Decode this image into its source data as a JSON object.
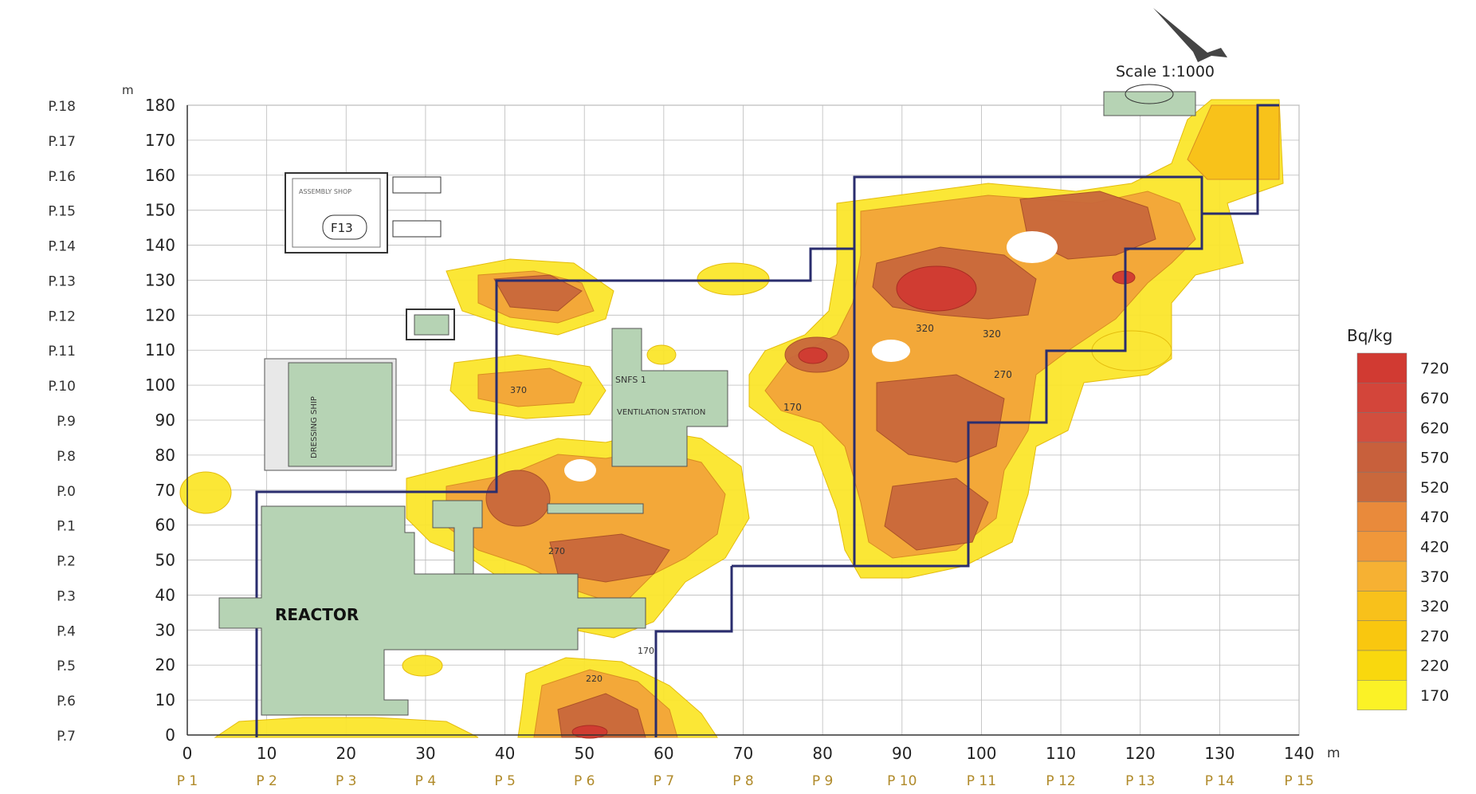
{
  "scale_label": "Scale 1:1000",
  "unit_x": "m",
  "unit_y": "m",
  "legend": {
    "title": "Bq/kg",
    "levels": [
      720,
      670,
      620,
      570,
      520,
      470,
      420,
      370,
      320,
      270,
      220,
      170
    ],
    "colors": [
      "#d13a32",
      "#d3453a",
      "#d24e3e",
      "#c8603c",
      "#c9683c",
      "#e98a3b",
      "#f0973a",
      "#f6b133",
      "#f8c11b",
      "#f9c70f",
      "#f9d80e",
      "#fbf226"
    ]
  },
  "x_ticks": [
    0,
    10,
    20,
    30,
    40,
    50,
    60,
    70,
    80,
    90,
    100,
    110,
    120,
    130,
    140
  ],
  "y_ticks": [
    0,
    10,
    20,
    30,
    40,
    50,
    60,
    70,
    80,
    90,
    100,
    110,
    120,
    130,
    140,
    150,
    160,
    170,
    180
  ],
  "x_profiles": [
    "P 1",
    "P 2",
    "P 3",
    "P 4",
    "P 5",
    "P 6",
    "P 7",
    "P 8",
    "P 9",
    "P 10",
    "P 11",
    "P 12",
    "P 13",
    "P 14",
    "P 15"
  ],
  "y_profiles": [
    "P.18",
    "P.17",
    "P.16",
    "P.15",
    "P.14",
    "P.13",
    "P.12",
    "P.11",
    "P.10",
    "P.9",
    "P.8",
    "P.0",
    "P.1",
    "P.2",
    "P.3",
    "P.4",
    "P.5",
    "P.6",
    "P.7"
  ],
  "buildings": {
    "reactor": "REACTOR",
    "ventilation": "VENTILATION STATION",
    "snfs": "SNFS 1",
    "dressing": "DRESSING SHIP",
    "assembly": "ASSEMBLY SHOP",
    "f13": "F13"
  },
  "contour_labels": {
    "a": "320",
    "b": "320",
    "c": "270",
    "d": "170",
    "e": "370",
    "f": "270",
    "g": "220",
    "h": "170"
  }
}
